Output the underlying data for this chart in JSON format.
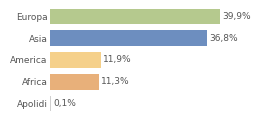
{
  "categories": [
    "Europa",
    "Asia",
    "America",
    "Africa",
    "Apolidi"
  ],
  "values": [
    39.9,
    36.8,
    11.9,
    11.3,
    0.1
  ],
  "labels": [
    "39,9%",
    "36,8%",
    "11,9%",
    "11,3%",
    "0,1%"
  ],
  "bar_colors": [
    "#b5c98e",
    "#6d8ebf",
    "#f5d08a",
    "#e8b07a",
    "#d0d0d0"
  ],
  "background_color": "#ffffff",
  "xlim": [
    0,
    46
  ],
  "label_fontsize": 6.5,
  "tick_fontsize": 6.5,
  "grid_color": "#d8d8d8",
  "text_color": "#555555"
}
